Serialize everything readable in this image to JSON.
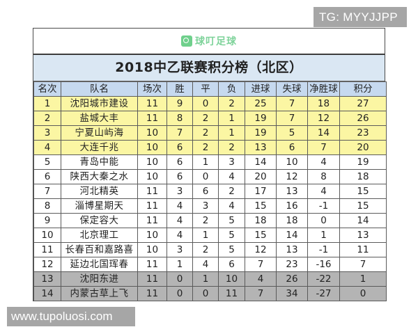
{
  "watermarks": {
    "top_right": "TG: MYYJJPP",
    "bottom_left": "www.tupoluosi.com"
  },
  "logo": {
    "icon": "location-pin-icon",
    "text": "球叮足球",
    "color": "#6fd08c"
  },
  "title": "2018中乙联赛积分榜（北区）",
  "colors": {
    "header_bg": "#c6d9ef",
    "title_bg": "#dae7f3",
    "promotion_bg": "#fbf6a3",
    "relegation_bg": "#b4b4b4"
  },
  "columns": [
    "名次",
    "队名",
    "场次",
    "胜",
    "平",
    "负",
    "进球",
    "失球",
    "净胜球",
    "积分"
  ],
  "rows": [
    {
      "rank": "1",
      "team": "沈阳城市建设",
      "played": "11",
      "won": "9",
      "drawn": "0",
      "lost": "2",
      "gf": "25",
      "ga": "7",
      "gd": "18",
      "pts": "27",
      "zone": "promo"
    },
    {
      "rank": "2",
      "team": "盐城大丰",
      "played": "11",
      "won": "8",
      "drawn": "2",
      "lost": "1",
      "gf": "19",
      "ga": "7",
      "gd": "12",
      "pts": "26",
      "zone": "promo"
    },
    {
      "rank": "3",
      "team": "宁夏山屿海",
      "played": "10",
      "won": "7",
      "drawn": "2",
      "lost": "1",
      "gf": "19",
      "ga": "5",
      "gd": "14",
      "pts": "23",
      "zone": "promo"
    },
    {
      "rank": "4",
      "team": "大连千兆",
      "played": "10",
      "won": "6",
      "drawn": "2",
      "lost": "2",
      "gf": "13",
      "ga": "6",
      "gd": "7",
      "pts": "20",
      "zone": "promo"
    },
    {
      "rank": "5",
      "team": "青岛中能",
      "played": "10",
      "won": "6",
      "drawn": "1",
      "lost": "3",
      "gf": "14",
      "ga": "10",
      "gd": "4",
      "pts": "19",
      "zone": "normal"
    },
    {
      "rank": "6",
      "team": "陕西大秦之水",
      "played": "10",
      "won": "6",
      "drawn": "0",
      "lost": "4",
      "gf": "20",
      "ga": "12",
      "gd": "8",
      "pts": "18",
      "zone": "normal"
    },
    {
      "rank": "7",
      "team": "河北精英",
      "played": "11",
      "won": "3",
      "drawn": "6",
      "lost": "2",
      "gf": "17",
      "ga": "13",
      "gd": "4",
      "pts": "15",
      "zone": "normal"
    },
    {
      "rank": "8",
      "team": "淄博星期天",
      "played": "11",
      "won": "4",
      "drawn": "3",
      "lost": "4",
      "gf": "15",
      "ga": "16",
      "gd": "-1",
      "pts": "15",
      "zone": "normal"
    },
    {
      "rank": "9",
      "team": "保定容大",
      "played": "11",
      "won": "4",
      "drawn": "2",
      "lost": "5",
      "gf": "18",
      "ga": "18",
      "gd": "0",
      "pts": "14",
      "zone": "normal"
    },
    {
      "rank": "10",
      "team": "北京理工",
      "played": "10",
      "won": "4",
      "drawn": "1",
      "lost": "5",
      "gf": "15",
      "ga": "14",
      "gd": "1",
      "pts": "13",
      "zone": "normal"
    },
    {
      "rank": "11",
      "team": "长春百和嘉路喜",
      "played": "10",
      "won": "3",
      "drawn": "2",
      "lost": "5",
      "gf": "12",
      "ga": "13",
      "gd": "-1",
      "pts": "11",
      "zone": "normal"
    },
    {
      "rank": "12",
      "team": "延边北国珲春",
      "played": "11",
      "won": "1",
      "drawn": "4",
      "lost": "6",
      "gf": "7",
      "ga": "23",
      "gd": "-16",
      "pts": "7",
      "zone": "normal"
    },
    {
      "rank": "13",
      "team": "沈阳东进",
      "played": "11",
      "won": "0",
      "drawn": "1",
      "lost": "10",
      "gf": "4",
      "ga": "26",
      "gd": "-22",
      "pts": "1",
      "zone": "releg"
    },
    {
      "rank": "14",
      "team": "内蒙古草上飞",
      "played": "11",
      "won": "0",
      "drawn": "0",
      "lost": "11",
      "gf": "7",
      "ga": "34",
      "gd": "-27",
      "pts": "0",
      "zone": "releg"
    }
  ]
}
